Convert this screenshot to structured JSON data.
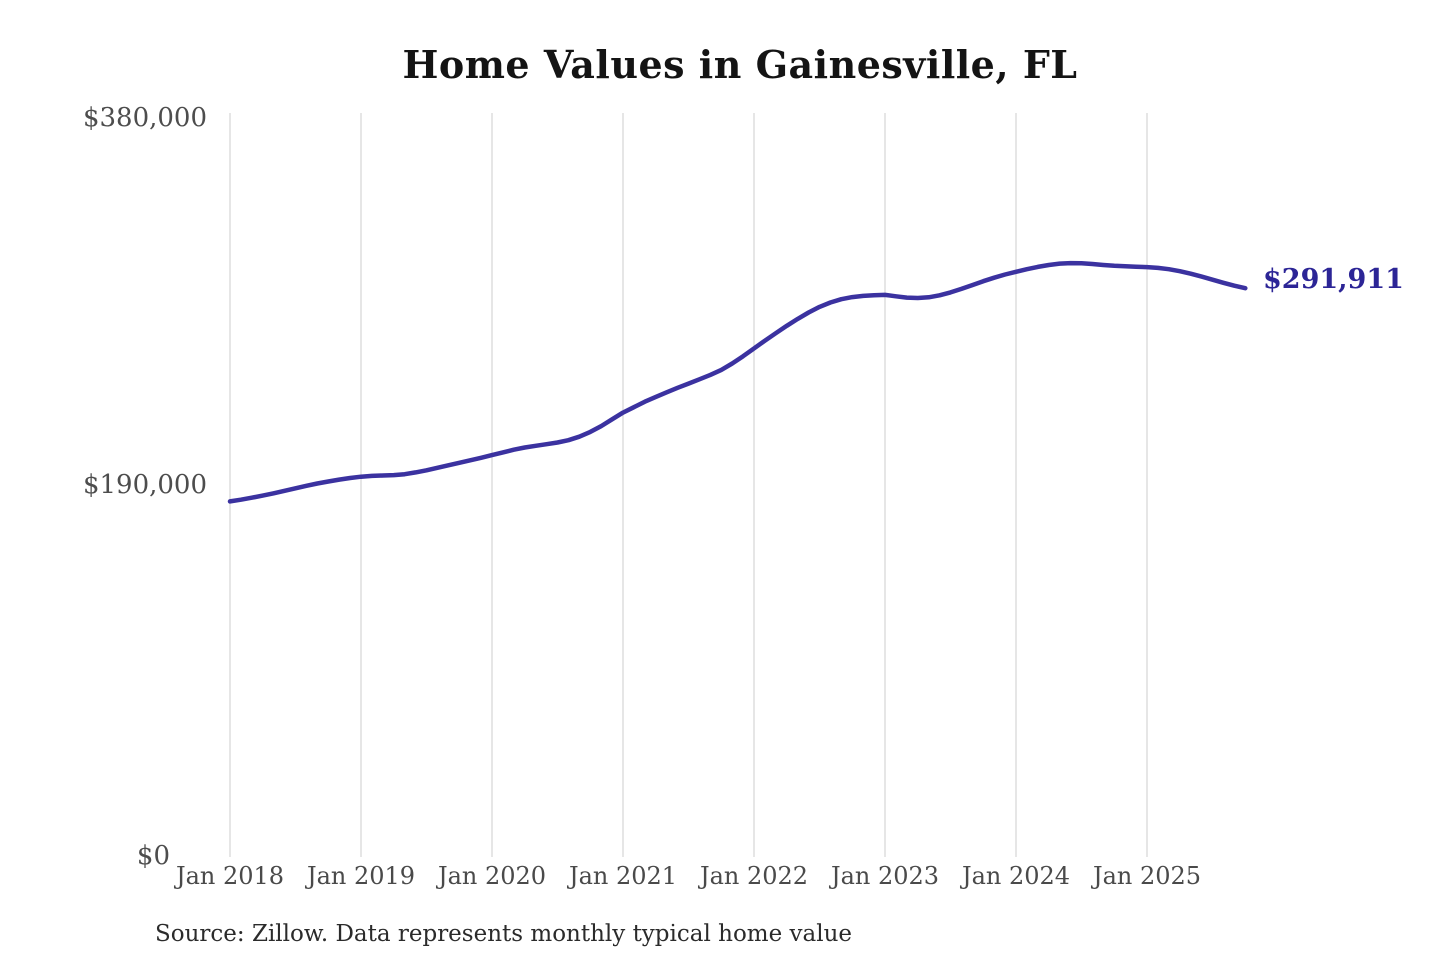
{
  "page": {
    "background": "#ffffff"
  },
  "chart_data": {
    "type": "line",
    "title": "Home Values in Gainesville, FL",
    "source_note": "Source: Zillow. Data represents monthly typical home value",
    "end_value_label": "$291,911",
    "line_color": "#3b32a0",
    "grid": "vertical-year-gridlines-only",
    "legend_position": "none",
    "x_tick_labels": [
      "Jan 2018",
      "Jan 2019",
      "Jan 2020",
      "Jan 2021",
      "Jan 2022",
      "Jan 2023",
      "Jan 2024",
      "Jan 2025"
    ],
    "y_ticks": [
      {
        "label": "$0",
        "value": 0
      },
      {
        "label": "$190,000",
        "value": 190000
      },
      {
        "label": "$380,000",
        "value": 380000
      }
    ],
    "ylim": [
      0,
      380000
    ],
    "x_range": {
      "start": "Jan 2018",
      "end": "Oct 2025",
      "frequency": "monthly"
    },
    "series": [
      {
        "name": "Typical home value",
        "start": "Jan 2018",
        "frequency": "monthly",
        "values": [
          181500,
          182400,
          183400,
          184500,
          185700,
          187000,
          188300,
          189600,
          190800,
          191800,
          192800,
          193600,
          194300,
          194700,
          194900,
          195100,
          195600,
          196500,
          197600,
          198900,
          200200,
          201500,
          202800,
          204100,
          205500,
          206900,
          208300,
          209400,
          210300,
          211100,
          212000,
          213200,
          215000,
          217500,
          220500,
          224000,
          227500,
          230300,
          233100,
          235600,
          238000,
          240300,
          242500,
          244700,
          247000,
          249600,
          252900,
          256700,
          260700,
          264700,
          268600,
          272400,
          276000,
          279300,
          282200,
          284500,
          286200,
          287300,
          287900,
          288200,
          288400,
          287700,
          287000,
          286800,
          287200,
          288200,
          289700,
          291500,
          293500,
          295500,
          297300,
          299000,
          300400,
          301700,
          302900,
          303900,
          304600,
          304900,
          304800,
          304400,
          303900,
          303500,
          303200,
          303000,
          302800,
          302400,
          301700,
          300700,
          299400,
          297900,
          296300,
          294700,
          293200,
          291911
        ]
      }
    ]
  }
}
